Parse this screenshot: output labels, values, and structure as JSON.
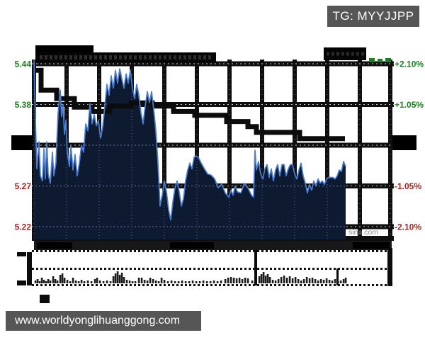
{
  "tag_box": {
    "label": "TG: MYYJJPP"
  },
  "footer": {
    "url": "www.worldyonglihuanggong.com"
  },
  "chart_data": {
    "type": "line",
    "title": "",
    "watermark": "sina.com",
    "legend": [],
    "y_axis": {
      "left_labels": [
        {
          "text": "5.44",
          "pct": 2.1,
          "color": "up"
        },
        {
          "text": "5.38",
          "pct": 1.05,
          "color": "up"
        },
        {
          "text": "5.27",
          "pct": -1.05,
          "color": "down"
        },
        {
          "text": "5.22",
          "pct": -2.1,
          "color": "down"
        }
      ],
      "right_labels": [
        {
          "text": "+2.10%",
          "pct": 2.1,
          "color": "up"
        },
        {
          "text": "+1.05%",
          "pct": 1.05,
          "color": "up"
        },
        {
          "text": "-1.05%",
          "pct": -1.05,
          "color": "down"
        },
        {
          "text": "-2.10%",
          "pct": -2.1,
          "color": "down"
        }
      ],
      "middle_label_hidden": true,
      "ylim_pct": [
        -2.4,
        2.4
      ],
      "grid_rows_pct": [
        2.1,
        1.05,
        0,
        -1.05,
        -2.1
      ]
    },
    "colors": {
      "up": "#1e7d1e",
      "down": "#a82222",
      "price_line": "#4a7dd6",
      "area_fill": "#0e1a30",
      "avg_line": "#0c0c0c",
      "volume_bar": "#1b1b1b",
      "grid": "#0f0f0f",
      "watermark": "#8a8a8a"
    },
    "price_line": {
      "points": [
        [
          48,
          2.19
        ],
        [
          50,
          0.64
        ],
        [
          52,
          -0.61
        ],
        [
          55,
          0.09
        ],
        [
          57,
          -0.79
        ],
        [
          60,
          -0.92
        ],
        [
          62,
          -0.09
        ],
        [
          64,
          -0.87
        ],
        [
          66,
          0.09
        ],
        [
          68,
          -0.74
        ],
        [
          71,
          -0.98
        ],
        [
          74,
          -0.18
        ],
        [
          76,
          -0.79
        ],
        [
          79,
          -0.46
        ],
        [
          82,
          0.83
        ],
        [
          85,
          1.42
        ],
        [
          87,
          0.74
        ],
        [
          89,
          1.05
        ],
        [
          91,
          0.28
        ],
        [
          93,
          0.64
        ],
        [
          95,
          -0.18
        ],
        [
          98,
          -0.55
        ],
        [
          100,
          0.0
        ],
        [
          103,
          -0.64
        ],
        [
          106,
          -0.24
        ],
        [
          109,
          -0.79
        ],
        [
          112,
          -0.46
        ],
        [
          115,
          0.0
        ],
        [
          118,
          -0.18
        ],
        [
          121,
          0.55
        ],
        [
          124,
          0.37
        ],
        [
          127,
          1.07
        ],
        [
          130,
          0.55
        ],
        [
          133,
          0.79
        ],
        [
          136,
          0.5
        ],
        [
          139,
          0.64
        ],
        [
          142,
          0.18
        ],
        [
          145,
          0.46
        ],
        [
          148,
          1.01
        ],
        [
          151,
          1.57
        ],
        [
          154,
          1.29
        ],
        [
          157,
          1.79
        ],
        [
          160,
          1.47
        ],
        [
          163,
          1.93
        ],
        [
          166,
          1.6
        ],
        [
          169,
          1.97
        ],
        [
          172,
          1.71
        ],
        [
          175,
          1.47
        ],
        [
          178,
          1.84
        ],
        [
          181,
          1.6
        ],
        [
          184,
          1.93
        ],
        [
          187,
          1.47
        ],
        [
          190,
          1.2
        ],
        [
          193,
          1.57
        ],
        [
          196,
          1.29
        ],
        [
          199,
          0.83
        ],
        [
          202,
          0.55
        ],
        [
          205,
          1.01
        ],
        [
          208,
          1.38
        ],
        [
          211,
          1.1
        ],
        [
          214,
          1.38
        ],
        [
          217,
          0.92
        ],
        [
          220,
          0.37
        ],
        [
          223,
          -0.46
        ],
        [
          226,
          -1.57
        ],
        [
          229,
          -1.29
        ],
        [
          232,
          -0.92
        ],
        [
          235,
          -1.2
        ],
        [
          238,
          -1.66
        ],
        [
          241,
          -1.93
        ],
        [
          244,
          -1.47
        ],
        [
          247,
          -1.1
        ],
        [
          250,
          -0.92
        ],
        [
          253,
          -1.2
        ],
        [
          256,
          -1.57
        ],
        [
          259,
          -1.38
        ],
        [
          262,
          -0.92
        ],
        [
          265,
          -0.64
        ],
        [
          268,
          -0.46
        ],
        [
          271,
          -0.61
        ],
        [
          274,
          -0.31
        ],
        [
          277,
          -0.28
        ],
        [
          280,
          -0.31
        ],
        [
          284,
          -0.46
        ],
        [
          288,
          -0.59
        ],
        [
          293,
          -0.74
        ],
        [
          298,
          -0.77
        ],
        [
          303,
          -0.87
        ],
        [
          308,
          -1.1
        ],
        [
          313,
          -1.01
        ],
        [
          318,
          -1.23
        ],
        [
          323,
          -1.34
        ],
        [
          326,
          -1.16
        ],
        [
          329,
          -1.29
        ],
        [
          332,
          -1.05
        ],
        [
          335,
          -1.2
        ],
        [
          340,
          -1.23
        ],
        [
          345,
          -0.98
        ],
        [
          350,
          -1.1
        ],
        [
          355,
          -1.29
        ],
        [
          358,
          -1.34
        ],
        [
          360,
          -0.13
        ],
        [
          362,
          -0.64
        ],
        [
          365,
          -0.42
        ],
        [
          368,
          -0.74
        ],
        [
          371,
          -0.87
        ],
        [
          374,
          -0.61
        ],
        [
          377,
          -0.5
        ],
        [
          380,
          -0.83
        ],
        [
          383,
          -0.61
        ],
        [
          386,
          -0.92
        ],
        [
          389,
          -0.64
        ],
        [
          392,
          -0.5
        ],
        [
          395,
          -0.79
        ],
        [
          398,
          -0.5
        ],
        [
          401,
          -0.5
        ],
        [
          404,
          -0.79
        ],
        [
          407,
          -0.61
        ],
        [
          410,
          -0.5
        ],
        [
          413,
          -0.5
        ],
        [
          416,
          -0.74
        ],
        [
          419,
          -0.87
        ],
        [
          422,
          -0.64
        ],
        [
          425,
          -0.46
        ],
        [
          428,
          -0.79
        ],
        [
          431,
          -0.98
        ],
        [
          434,
          -1.23
        ],
        [
          437,
          -1.01
        ],
        [
          440,
          -1.16
        ],
        [
          443,
          -0.92
        ],
        [
          446,
          -1.05
        ],
        [
          449,
          -0.87
        ],
        [
          452,
          -0.98
        ],
        [
          455,
          -0.92
        ],
        [
          458,
          -1.01
        ],
        [
          461,
          -0.87
        ],
        [
          464,
          -0.83
        ],
        [
          467,
          -0.83
        ],
        [
          470,
          -0.83
        ],
        [
          473,
          -0.87
        ],
        [
          476,
          -0.79
        ],
        [
          479,
          -0.64
        ],
        [
          482,
          -0.68
        ],
        [
          485,
          -0.42
        ],
        [
          488,
          -0.55
        ]
      ]
    },
    "avg_line": {
      "points": [
        [
          50,
          1.93
        ],
        [
          58,
          1.93
        ],
        [
          58,
          1.42
        ],
        [
          80,
          1.42
        ],
        [
          80,
          1.2
        ],
        [
          105,
          1.2
        ],
        [
          105,
          0.98
        ],
        [
          130,
          0.98
        ],
        [
          130,
          0.87
        ],
        [
          155,
          0.87
        ],
        [
          155,
          1.01
        ],
        [
          185,
          1.01
        ],
        [
          185,
          1.09
        ],
        [
          215,
          1.09
        ],
        [
          215,
          1.01
        ],
        [
          245,
          1.01
        ],
        [
          245,
          0.87
        ],
        [
          275,
          0.87
        ],
        [
          275,
          0.77
        ],
        [
          320,
          0.77
        ],
        [
          320,
          0.61
        ],
        [
          350,
          0.61
        ],
        [
          350,
          0.48
        ],
        [
          362,
          0.48
        ],
        [
          362,
          0.33
        ],
        [
          423,
          0.33
        ],
        [
          423,
          0.17
        ],
        [
          487,
          0.17
        ]
      ]
    },
    "volume": {
      "bars": [
        [
          50,
          4
        ],
        [
          53,
          6
        ],
        [
          56,
          3
        ],
        [
          59,
          8
        ],
        [
          62,
          5
        ],
        [
          65,
          3
        ],
        [
          68,
          6
        ],
        [
          71,
          4
        ],
        [
          75,
          10
        ],
        [
          78,
          6
        ],
        [
          81,
          4
        ],
        [
          85,
          12
        ],
        [
          88,
          14
        ],
        [
          91,
          8
        ],
        [
          95,
          5
        ],
        [
          99,
          3
        ],
        [
          103,
          8
        ],
        [
          107,
          4
        ],
        [
          111,
          3
        ],
        [
          115,
          5
        ],
        [
          119,
          3
        ],
        [
          124,
          4
        ],
        [
          129,
          3
        ],
        [
          134,
          6
        ],
        [
          137,
          8
        ],
        [
          141,
          4
        ],
        [
          146,
          3
        ],
        [
          151,
          4
        ],
        [
          156,
          3
        ],
        [
          160,
          10
        ],
        [
          163,
          14
        ],
        [
          166,
          17
        ],
        [
          169,
          12
        ],
        [
          172,
          15
        ],
        [
          175,
          9
        ],
        [
          179,
          5
        ],
        [
          183,
          4
        ],
        [
          187,
          3
        ],
        [
          191,
          3
        ],
        [
          196,
          8
        ],
        [
          200,
          8
        ],
        [
          204,
          5
        ],
        [
          208,
          4
        ],
        [
          212,
          8
        ],
        [
          216,
          6
        ],
        [
          220,
          4
        ],
        [
          224,
          3
        ],
        [
          228,
          8
        ],
        [
          232,
          5
        ],
        [
          237,
          3
        ],
        [
          242,
          4
        ],
        [
          247,
          3
        ],
        [
          252,
          3
        ],
        [
          257,
          4
        ],
        [
          262,
          3
        ],
        [
          267,
          3
        ],
        [
          272,
          4
        ],
        [
          277,
          3
        ],
        [
          282,
          3
        ],
        [
          287,
          4
        ],
        [
          292,
          3
        ],
        [
          297,
          3
        ],
        [
          302,
          4
        ],
        [
          307,
          3
        ],
        [
          312,
          4
        ],
        [
          318,
          6
        ],
        [
          322,
          8
        ],
        [
          326,
          9
        ],
        [
          330,
          8
        ],
        [
          334,
          7
        ],
        [
          338,
          8
        ],
        [
          342,
          6
        ],
        [
          346,
          8
        ],
        [
          350,
          7
        ],
        [
          356,
          4
        ],
        [
          360,
          3
        ],
        [
          366,
          10
        ],
        [
          369,
          13
        ],
        [
          372,
          16
        ],
        [
          375,
          11
        ],
        [
          378,
          13
        ],
        [
          381,
          9
        ],
        [
          385,
          5
        ],
        [
          389,
          4
        ],
        [
          393,
          6
        ],
        [
          397,
          9
        ],
        [
          401,
          11
        ],
        [
          405,
          8
        ],
        [
          409,
          10
        ],
        [
          413,
          7
        ],
        [
          417,
          9
        ],
        [
          421,
          6
        ],
        [
          425,
          4
        ],
        [
          429,
          6
        ],
        [
          433,
          9
        ],
        [
          437,
          7
        ],
        [
          441,
          8
        ],
        [
          445,
          6
        ],
        [
          449,
          4
        ],
        [
          453,
          6
        ],
        [
          457,
          5
        ],
        [
          461,
          7
        ],
        [
          465,
          5
        ],
        [
          469,
          4
        ],
        [
          473,
          6
        ],
        [
          477,
          3
        ],
        [
          481,
          4
        ],
        [
          485,
          6
        ],
        [
          488,
          8
        ]
      ]
    }
  }
}
